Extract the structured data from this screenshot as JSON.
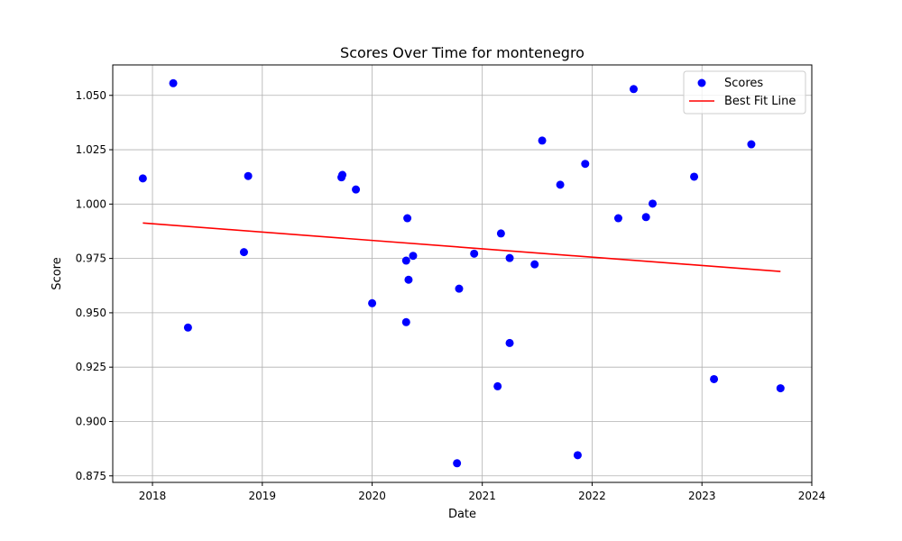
{
  "chart_data": {
    "type": "scatter",
    "title": "Scores Over Time for montenegro",
    "xlabel": "Date",
    "ylabel": "Score",
    "xlim": [
      "2017-08-22",
      "2024-01-01"
    ],
    "ylim": [
      0.872,
      1.064
    ],
    "x_ticks": [
      "2018",
      "2019",
      "2020",
      "2021",
      "2022",
      "2023",
      "2024"
    ],
    "y_ticks": [
      "0.875",
      "0.900",
      "0.925",
      "0.950",
      "0.975",
      "1.000",
      "1.025",
      "1.050"
    ],
    "grid": true,
    "legend": {
      "placement": "top-right",
      "entries": [
        "Scores",
        "Best Fit Line"
      ]
    },
    "series": [
      {
        "name": "Scores",
        "kind": "scatter",
        "color": "#0000ff",
        "points": [
          {
            "x": "2017-11-30",
            "y": 1.0118
          },
          {
            "x": "2018-03-11",
            "y": 1.0556
          },
          {
            "x": "2018-04-29",
            "y": 0.9432
          },
          {
            "x": "2018-11-01",
            "y": 0.9779
          },
          {
            "x": "2018-11-15",
            "y": 1.0129
          },
          {
            "x": "2019-09-21",
            "y": 1.0123
          },
          {
            "x": "2019-09-24",
            "y": 1.0134
          },
          {
            "x": "2019-11-08",
            "y": 1.0067
          },
          {
            "x": "2020-01-01",
            "y": 0.9544
          },
          {
            "x": "2020-04-23",
            "y": 0.9457
          },
          {
            "x": "2020-04-23",
            "y": 0.974
          },
          {
            "x": "2020-04-27",
            "y": 0.9935
          },
          {
            "x": "2020-05-01",
            "y": 0.9652
          },
          {
            "x": "2020-05-16",
            "y": 0.9762
          },
          {
            "x": "2020-10-09",
            "y": 0.8808
          },
          {
            "x": "2020-10-16",
            "y": 0.9611
          },
          {
            "x": "2020-12-05",
            "y": 0.9772
          },
          {
            "x": "2021-02-21",
            "y": 0.9162
          },
          {
            "x": "2021-03-04",
            "y": 0.9865
          },
          {
            "x": "2021-04-02",
            "y": 0.9752
          },
          {
            "x": "2021-04-02",
            "y": 0.9361
          },
          {
            "x": "2021-06-24",
            "y": 0.9723
          },
          {
            "x": "2021-07-19",
            "y": 1.0292
          },
          {
            "x": "2021-09-17",
            "y": 1.0089
          },
          {
            "x": "2021-11-14",
            "y": 0.8845
          },
          {
            "x": "2021-12-09",
            "y": 1.0185
          },
          {
            "x": "2022-03-29",
            "y": 0.9935
          },
          {
            "x": "2022-05-19",
            "y": 1.0529
          },
          {
            "x": "2022-06-29",
            "y": 0.994
          },
          {
            "x": "2022-07-21",
            "y": 1.0002
          },
          {
            "x": "2022-12-06",
            "y": 1.0126
          },
          {
            "x": "2023-02-10",
            "y": 0.9195
          },
          {
            "x": "2023-06-14",
            "y": 1.0275
          },
          {
            "x": "2023-09-19",
            "y": 0.9153
          }
        ]
      },
      {
        "name": "Best Fit Line",
        "kind": "line",
        "color": "#ff0000",
        "points": [
          {
            "x": "2017-11-30",
            "y": 0.9913
          },
          {
            "x": "2023-09-19",
            "y": 0.969
          }
        ]
      }
    ]
  }
}
